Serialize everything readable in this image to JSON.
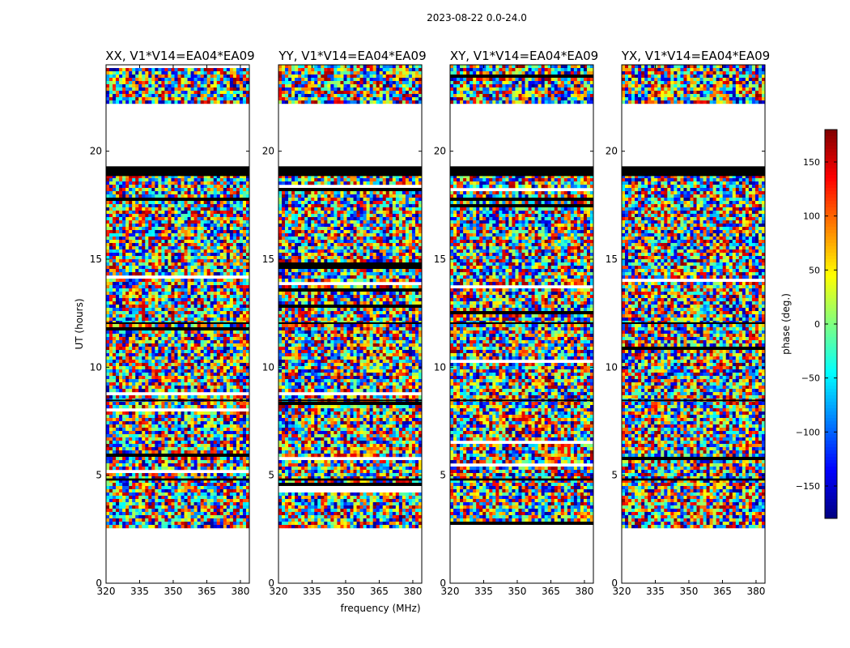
{
  "figure": {
    "suptitle": "2023-08-22 0.0-24.0"
  },
  "chart_data": {
    "type": "heatmap",
    "xlabel": "frequency (MHz)",
    "ylabel": "UT (hours)",
    "xlim": [
      320,
      384
    ],
    "ylim": [
      0,
      24
    ],
    "xticks": [
      320,
      335,
      350,
      365,
      380
    ],
    "yticks": [
      0,
      5,
      10,
      15,
      20
    ],
    "data_time_range": [
      2.6,
      24.0
    ],
    "black_bands": [
      [
        18.85,
        19.3
      ],
      [
        4.75,
        4.85
      ],
      [
        8.45,
        8.5
      ],
      [
        12.0,
        12.08
      ]
    ],
    "white_bands": [
      [
        19.3,
        22.1
      ],
      [
        0,
        2.6
      ]
    ],
    "panels": [
      {
        "title": "XX, V1*V14=EA04*EA09",
        "pol": "XX"
      },
      {
        "title": "YY, V1*V14=EA04*EA09",
        "pol": "YY"
      },
      {
        "title": "XY, V1*V14=EA04*EA09",
        "pol": "XY"
      },
      {
        "title": "YX, V1*V14=EA04*EA09",
        "pol": "YX"
      }
    ],
    "colorbar": {
      "label": "phase (deg.)",
      "range": [
        -180,
        180
      ],
      "ticks": [
        -150,
        -100,
        -50,
        0,
        50,
        100,
        150
      ],
      "tick_labels": [
        "−150",
        "−100",
        "−50",
        "0",
        "50",
        "100",
        "150"
      ],
      "colormap": "jet"
    }
  }
}
